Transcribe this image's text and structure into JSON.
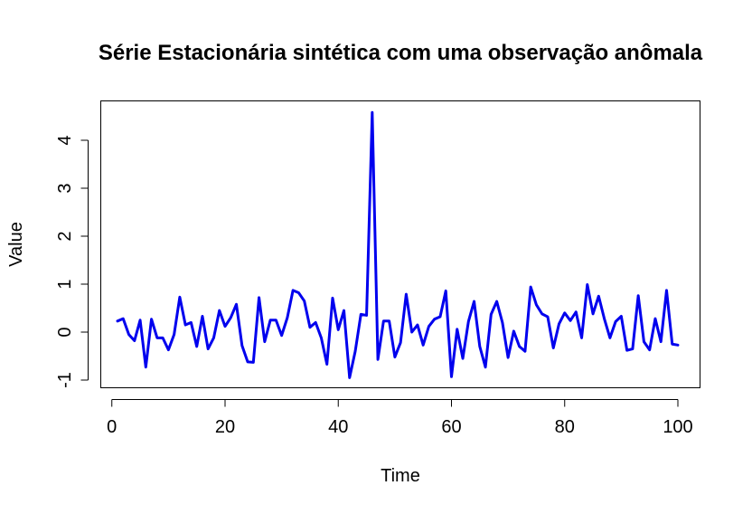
{
  "chart_data": {
    "type": "line",
    "title": "Série Estacionária sintética com uma observação anômala",
    "xlabel": "Time",
    "ylabel": "Value",
    "xlim": [
      1,
      100
    ],
    "ylim": [
      -1,
      4.5
    ],
    "x_ticks": [
      "0",
      "20",
      "40",
      "60",
      "80",
      "100"
    ],
    "y_ticks": [
      "-1",
      "0",
      "1",
      "2",
      "3",
      "4"
    ],
    "grid": false,
    "series_color": "#0000ee",
    "x": [
      1,
      2,
      3,
      4,
      5,
      6,
      7,
      8,
      9,
      10,
      11,
      12,
      13,
      14,
      15,
      16,
      17,
      18,
      19,
      20,
      21,
      22,
      23,
      24,
      25,
      26,
      27,
      28,
      29,
      30,
      31,
      32,
      33,
      34,
      35,
      36,
      37,
      38,
      39,
      40,
      41,
      42,
      43,
      44,
      45,
      46,
      47,
      48,
      49,
      50,
      51,
      52,
      53,
      54,
      55,
      56,
      57,
      58,
      59,
      60,
      61,
      62,
      63,
      64,
      65,
      66,
      67,
      68,
      69,
      70,
      71,
      72,
      73,
      74,
      75,
      76,
      77,
      78,
      79,
      80,
      81,
      82,
      83,
      84,
      85,
      86,
      87,
      88,
      89,
      90,
      91,
      92,
      93,
      94,
      95,
      96,
      97,
      98,
      99,
      100
    ],
    "values": [
      0.23,
      0.28,
      -0.05,
      -0.18,
      0.25,
      -0.73,
      0.27,
      -0.12,
      -0.12,
      -0.37,
      -0.05,
      0.73,
      0.15,
      0.2,
      -0.3,
      0.33,
      -0.35,
      -0.12,
      0.45,
      0.12,
      0.3,
      0.58,
      -0.28,
      -0.62,
      -0.63,
      0.72,
      -0.2,
      0.25,
      0.25,
      -0.07,
      0.3,
      0.87,
      0.82,
      0.65,
      0.1,
      0.2,
      -0.12,
      -0.67,
      0.71,
      0.05,
      0.45,
      -0.95,
      -0.4,
      0.37,
      0.35,
      4.58,
      -0.57,
      0.23,
      0.23,
      -0.52,
      -0.22,
      0.79,
      0.0,
      0.15,
      -0.27,
      0.12,
      0.27,
      0.32,
      0.86,
      -0.93,
      0.06,
      -0.55,
      0.22,
      0.64,
      -0.3,
      -0.73,
      0.37,
      0.64,
      0.2,
      -0.53,
      0.02,
      -0.3,
      -0.4,
      0.94,
      0.57,
      0.38,
      0.32,
      -0.33,
      0.17,
      0.4,
      0.24,
      0.42,
      -0.12,
      0.99,
      0.38,
      0.75,
      0.28,
      -0.12,
      0.22,
      0.33,
      -0.38,
      -0.35,
      0.76,
      -0.2,
      -0.37,
      0.28,
      -0.2,
      0.87,
      -0.25,
      -0.27
    ]
  }
}
